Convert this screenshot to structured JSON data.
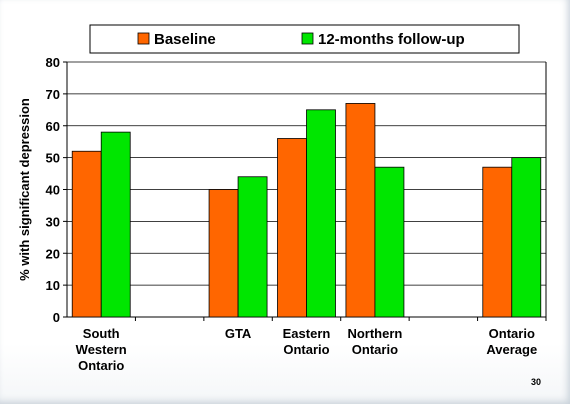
{
  "chart_data": {
    "type": "bar",
    "title": "",
    "xlabel": "",
    "ylabel": "% with significant depression",
    "ylim": [
      0,
      80
    ],
    "yticks": [
      0,
      10,
      20,
      30,
      40,
      50,
      60,
      70,
      80
    ],
    "grid": true,
    "legend_position": "top",
    "categories": [
      [
        "South",
        "Western",
        "Ontario"
      ],
      [],
      [
        "GTA"
      ],
      [
        "Eastern",
        "Ontario"
      ],
      [
        "Northern",
        "Ontario"
      ],
      [],
      [
        "Ontario",
        "Average"
      ]
    ],
    "series": [
      {
        "name": "Baseline",
        "color": "#ff6600",
        "values": [
          52,
          null,
          40,
          56,
          67,
          null,
          47
        ]
      },
      {
        "name": "12-months follow-up",
        "color": "#00e600",
        "values": [
          58,
          null,
          44,
          65,
          47,
          null,
          50
        ]
      }
    ]
  },
  "page_number": "30"
}
